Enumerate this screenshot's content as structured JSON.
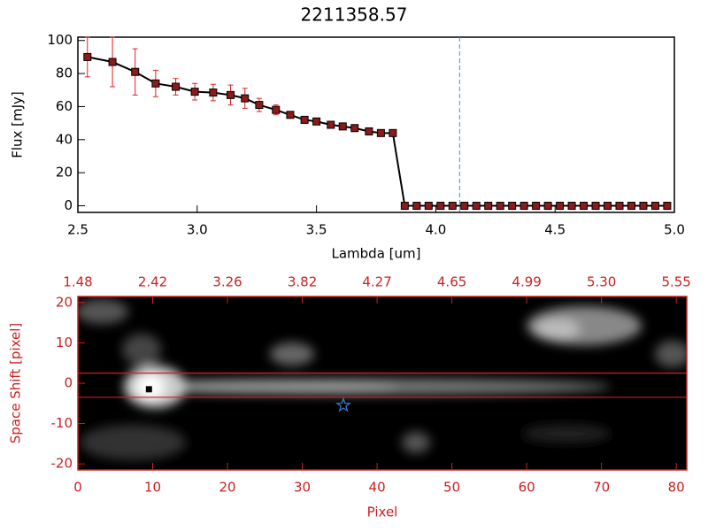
{
  "chart_data": [
    {
      "type": "line",
      "title": "2211358.57",
      "xlabel": "Lambda [um]",
      "ylabel": "Flux [mJy]",
      "x": [
        2.54,
        2.645,
        2.74,
        2.826,
        2.91,
        2.99,
        3.067,
        3.14,
        3.2,
        3.26,
        3.33,
        3.39,
        3.45,
        3.5,
        3.56,
        3.61,
        3.66,
        3.72,
        3.77,
        3.82,
        3.87,
        3.92,
        3.97,
        4.02,
        4.07,
        4.12,
        4.17,
        4.22,
        4.27,
        4.32,
        4.37,
        4.42,
        4.47,
        4.52,
        4.57,
        4.62,
        4.67,
        4.72,
        4.77,
        4.82,
        4.87,
        4.92,
        4.97
      ],
      "values": [
        90,
        87,
        81,
        74,
        72,
        69,
        68.5,
        67,
        65,
        61,
        58,
        55,
        52,
        51,
        49,
        48,
        47,
        45,
        44,
        44,
        0,
        0,
        0,
        0,
        0,
        0,
        0,
        0,
        0,
        0,
        0,
        0,
        0,
        0,
        0,
        0,
        0,
        0,
        0,
        0,
        0,
        0,
        0
      ],
      "errors": [
        12,
        15,
        14,
        8,
        5,
        5,
        5,
        6,
        6,
        4,
        3,
        1.5,
        1.5,
        1.5,
        1.5,
        1.5,
        1.5,
        1.5,
        1.5,
        1.5,
        0,
        0,
        0,
        0,
        0,
        0,
        0,
        0,
        0,
        0,
        0,
        0,
        0,
        0,
        0,
        0,
        0,
        0,
        0,
        0,
        0,
        0,
        0
      ],
      "color": "#000000",
      "marker_color": "#8b1a1a",
      "error_color": "#e02020",
      "vline": 4.1,
      "vline_color": "#2aa0c8",
      "xlim": [
        2.5,
        5.0
      ],
      "ylim": [
        -4,
        102
      ],
      "xticks": [
        2.5,
        {
          "value": 3,
          "label": "3.0"
        },
        3.5,
        {
          "value": 4,
          "label": "4.0"
        },
        4.5,
        {
          "value": 5,
          "label": "5.0"
        }
      ],
      "yticks": [
        0,
        20,
        40,
        60,
        80,
        100
      ]
    },
    {
      "type": "image",
      "xlabel": "Pixel",
      "ylabel": "Space Shift [pixel]",
      "color": "#cc2020",
      "xlim": [
        0,
        81.4
      ],
      "ylim": [
        -21.5,
        21.5
      ],
      "xticks": [
        0,
        10,
        20,
        30,
        40,
        50,
        60,
        70,
        80
      ],
      "x2ticks": [
        {
          "value": 0,
          "label": "1.48"
        },
        {
          "value": 10,
          "label": "2.42"
        },
        {
          "value": 20,
          "label": "3.26"
        },
        {
          "value": 30,
          "label": "3.82"
        },
        {
          "value": 40,
          "label": "4.27"
        },
        {
          "value": 50,
          "label": "4.65"
        },
        {
          "value": 60,
          "label": "4.99"
        },
        {
          "value": 70,
          "label": "5.30"
        },
        {
          "value": 80,
          "label": "5.55"
        }
      ],
      "yticks": [
        -20,
        -10,
        0,
        10,
        20
      ],
      "hlines": [
        2.5,
        -3.5
      ],
      "source": [
        9.5,
        -1.5
      ],
      "star": [
        35.5,
        -5.5
      ],
      "star_color": "#3a7fd0"
    }
  ]
}
